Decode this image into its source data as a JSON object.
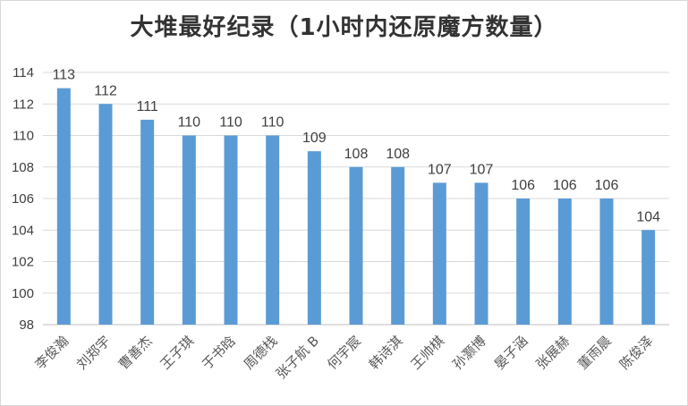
{
  "chart_data": {
    "type": "bar",
    "title": "大堆最好纪录（1小时内还原魔方数量）",
    "xlabel": "",
    "ylabel": "",
    "categories": [
      "李俊瀚",
      "刘郑宇",
      "曹善杰",
      "王子琪",
      "于书晗",
      "周德栈",
      "张子航 B",
      "何宇宸",
      "韩诗淇",
      "王帅棋",
      "孙灏博",
      "晏子涵",
      "张展赫",
      "董雨晨",
      "陈俊泽"
    ],
    "values": [
      113,
      112,
      111,
      110,
      110,
      110,
      109,
      108,
      108,
      107,
      107,
      106,
      106,
      106,
      104
    ],
    "ylim": [
      98,
      114
    ],
    "yticks": [
      98,
      100,
      102,
      104,
      106,
      108,
      110,
      112,
      114
    ],
    "grid": true,
    "legend": "none",
    "bar_color": "#5b9bd5",
    "grid_color": "#d9d9d9"
  }
}
